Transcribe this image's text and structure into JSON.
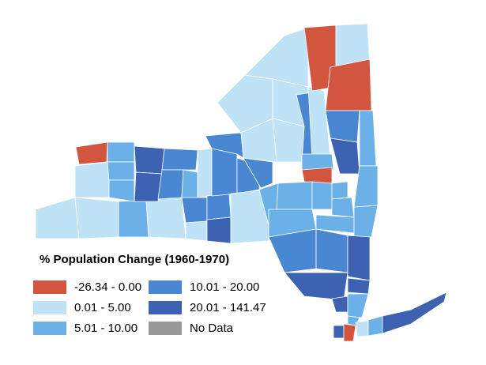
{
  "map": {
    "legend_title": "% Population Change (1960-1970)",
    "classes": [
      {
        "key": "c1",
        "label": "-26.34 - 0.00",
        "color": "#d2553f"
      },
      {
        "key": "c2",
        "label": "0.01 - 5.00",
        "color": "#bfe2f7"
      },
      {
        "key": "c3",
        "label": "5.01 - 10.00",
        "color": "#6bb0e6"
      },
      {
        "key": "c4",
        "label": "10.01 - 20.00",
        "color": "#4a87d3"
      },
      {
        "key": "c5",
        "label": "20.01 - 141.47",
        "color": "#3d62b1"
      },
      {
        "key": "nd",
        "label": "No Data",
        "color": "#999999"
      }
    ],
    "outline_color": "#ffffff"
  }
}
